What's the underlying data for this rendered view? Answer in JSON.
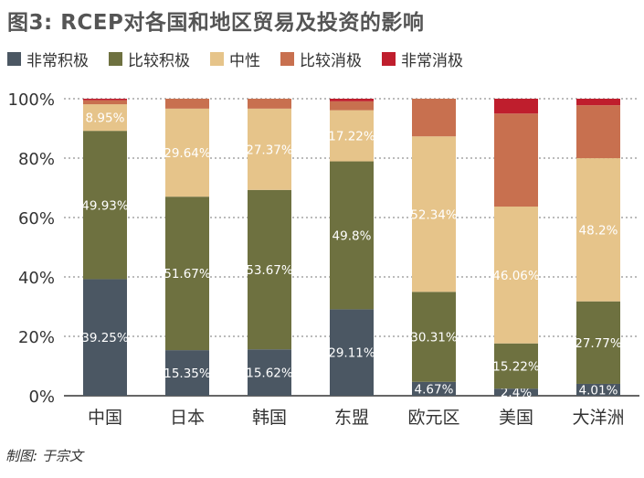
{
  "chart_data": {
    "type": "bar",
    "stacked": true,
    "title": "图3: RCEP对各国和地区贸易及投资的影响",
    "categories": [
      "中国",
      "日本",
      "韩国",
      "东盟",
      "欧元区",
      "美国",
      "大洋洲"
    ],
    "ylim": [
      0,
      100
    ],
    "yticks": [
      "0%",
      "20%",
      "40%",
      "60%",
      "80%",
      "100%"
    ],
    "grid": "dashed-horizontal",
    "legend_position": "top-left",
    "series": [
      {
        "name": "非常积极",
        "color": "#4b5763",
        "values": [
          39.25,
          15.35,
          15.62,
          29.11,
          4.67,
          2.4,
          4.01
        ],
        "labels": [
          "39.25%",
          "15.35%",
          "15.62%",
          "29.11%",
          "4.67%",
          "2.4%",
          "4.01%"
        ]
      },
      {
        "name": "比较积极",
        "color": "#6e7140",
        "values": [
          49.93,
          51.67,
          53.67,
          49.8,
          30.31,
          15.22,
          27.77
        ],
        "labels": [
          "49.93%",
          "51.67%",
          "53.67%",
          "49.8%",
          "30.31%",
          "15.22%",
          "27.77%"
        ]
      },
      {
        "name": "中性",
        "color": "#e6c48a",
        "values": [
          8.95,
          29.64,
          27.37,
          17.22,
          52.34,
          46.06,
          48.2
        ],
        "labels": [
          "8.95%",
          "29.64%",
          "27.37%",
          "17.22%",
          "52.34%",
          "46.06%",
          "48.2%"
        ]
      },
      {
        "name": "比较消极",
        "color": "#c8704f",
        "values": [
          1.37,
          3.34,
          3.34,
          3.0,
          12.68,
          31.32,
          17.82
        ],
        "labels": [
          "",
          "",
          "",
          "",
          "",
          "",
          ""
        ]
      },
      {
        "name": "非常消极",
        "color": "#bf1e2d",
        "values": [
          0.5,
          0,
          0,
          0.87,
          0,
          5.0,
          2.2
        ],
        "labels": [
          "",
          "",
          "",
          "",
          "",
          "",
          ""
        ]
      }
    ]
  },
  "credit": "制图: 于宗文"
}
